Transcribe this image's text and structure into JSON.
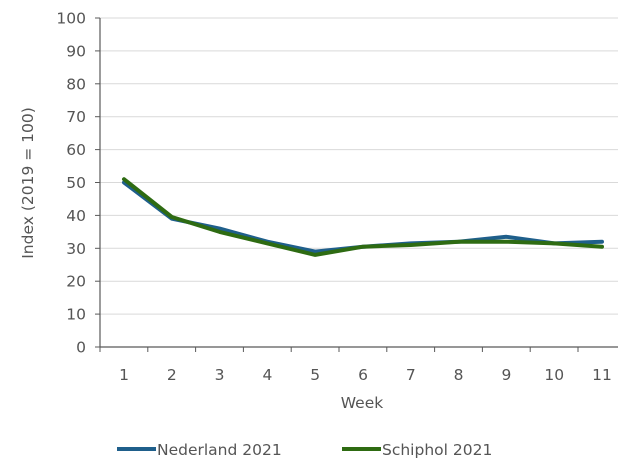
{
  "chart_data": {
    "type": "line",
    "title": "",
    "xlabel": "Week",
    "ylabel": "Index (2019 = 100)",
    "categories": [
      "1",
      "2",
      "3",
      "4",
      "5",
      "6",
      "7",
      "8",
      "9",
      "10",
      "11"
    ],
    "ylim": [
      0,
      100
    ],
    "yticks": [
      0,
      10,
      20,
      30,
      40,
      50,
      60,
      70,
      80,
      90,
      100
    ],
    "grid": true,
    "legend_position": "bottom",
    "series": [
      {
        "name": "Nederland 2021",
        "color": "#1f5f8b",
        "values": [
          50,
          39,
          36,
          32,
          29,
          30.5,
          31.5,
          32,
          33.5,
          31.5,
          32
        ]
      },
      {
        "name": "Schiphol 2021",
        "color": "#2e6b12",
        "values": [
          51,
          39.5,
          35,
          31.5,
          28,
          30.5,
          31,
          32,
          32,
          31.5,
          30.5
        ]
      }
    ]
  }
}
